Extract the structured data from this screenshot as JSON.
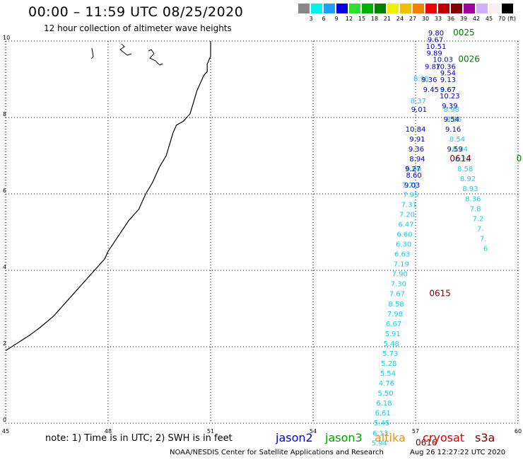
{
  "title": "00:00 – 11:59 UTC 08/25/2020",
  "subtitle": "12 hour collection of altimeter wave heights",
  "scale": {
    "unit": "(ft)",
    "colors": [
      "#888888",
      "#00f0f0",
      "#1ea0ff",
      "#0000e0",
      "#30e030",
      "#00b000",
      "#008000",
      "#f0f000",
      "#f0c000",
      "#f08000",
      "#f00000",
      "#c00000",
      "#800000",
      "#a000a0",
      "#d0b0ff",
      "#f8f0f0",
      "#000000"
    ],
    "labels": [
      "3",
      "6",
      "9",
      "12",
      "15",
      "18",
      "21",
      "24",
      "27",
      "30",
      "33",
      "36",
      "39",
      "42",
      "45",
      "70"
    ]
  },
  "chart_data": {
    "type": "scatter",
    "xlim": [
      45,
      60
    ],
    "ylim": [
      0,
      10
    ],
    "xticks": [
      "45",
      "48",
      "51",
      "54",
      "57",
      "60"
    ],
    "yticks": [
      "0",
      "2",
      "4",
      "6",
      "8",
      "10"
    ],
    "grid": true,
    "coastline": [
      [
        45.0,
        1.9
      ],
      [
        45.7,
        2.3
      ],
      [
        46.0,
        2.5
      ],
      [
        46.4,
        2.8
      ],
      [
        46.9,
        3.3
      ],
      [
        47.3,
        3.7
      ],
      [
        47.5,
        3.9
      ],
      [
        47.9,
        4.3
      ],
      [
        48.0,
        4.5
      ],
      [
        48.3,
        4.9
      ],
      [
        48.6,
        5.3
      ],
      [
        48.9,
        5.6
      ],
      [
        49.0,
        5.8
      ],
      [
        49.1,
        6.0
      ],
      [
        49.3,
        6.3
      ],
      [
        49.5,
        6.7
      ],
      [
        49.7,
        7.0
      ],
      [
        49.8,
        7.3
      ],
      [
        49.9,
        7.6
      ],
      [
        50.0,
        7.8
      ],
      [
        50.2,
        7.9
      ],
      [
        50.4,
        8.1
      ],
      [
        50.5,
        8.4
      ],
      [
        50.6,
        8.7
      ],
      [
        50.7,
        8.9
      ],
      [
        50.8,
        9.1
      ],
      [
        50.9,
        9.2
      ],
      [
        50.9,
        9.4
      ],
      [
        51.0,
        9.6
      ],
      [
        51.0,
        9.8
      ],
      [
        51.0,
        10.0
      ]
    ],
    "series": [
      {
        "color": "#1ec8e6",
        "points": [
          [
            57.17,
            8.95,
            "8.95"
          ],
          [
            57.08,
            8.37,
            "8.37"
          ],
          [
            56.94,
            6.6,
            "6.60"
          ],
          [
            56.83,
            6.17,
            "7.71"
          ],
          [
            56.86,
            5.92,
            "7.95"
          ],
          [
            56.81,
            5.66,
            "7.31"
          ],
          [
            56.75,
            5.4,
            "7.20"
          ],
          [
            56.72,
            5.14,
            "6.47"
          ],
          [
            56.68,
            4.88,
            "6.60"
          ],
          [
            56.65,
            4.62,
            "6.30"
          ],
          [
            56.61,
            4.36,
            "6.63"
          ],
          [
            56.58,
            4.1,
            "7.19"
          ],
          [
            56.54,
            3.84,
            "7.90"
          ],
          [
            56.5,
            3.58,
            "7.30"
          ],
          [
            56.46,
            3.32,
            "7.67"
          ],
          [
            56.43,
            3.06,
            "8.58"
          ],
          [
            56.4,
            2.8,
            "7.98"
          ],
          [
            56.36,
            2.54,
            "6.67"
          ],
          [
            56.33,
            2.28,
            "5.91"
          ],
          [
            56.29,
            2.02,
            "5.48"
          ],
          [
            56.26,
            1.76,
            "5.73"
          ],
          [
            56.22,
            1.5,
            "5.28"
          ],
          [
            56.19,
            1.24,
            "5.54"
          ],
          [
            56.15,
            0.98,
            "4.76"
          ],
          [
            56.12,
            0.72,
            "5.50"
          ],
          [
            56.08,
            0.46,
            "6.18"
          ],
          [
            56.04,
            0.2,
            "6.61"
          ],
          [
            56.01,
            -0.06,
            "5.45"
          ],
          [
            55.97,
            -0.32,
            "6.13"
          ],
          [
            55.94,
            -0.58,
            "5.94"
          ],
          [
            57.95,
            8.67,
            "8.67"
          ],
          [
            58.05,
            8.15,
            "8.98"
          ],
          [
            58.12,
            7.89,
            "8.86"
          ],
          [
            58.22,
            7.37,
            "8.54"
          ],
          [
            58.3,
            7.11,
            "8.34"
          ],
          [
            58.38,
            6.85,
            "8.22"
          ],
          [
            58.45,
            6.59,
            "8.58"
          ],
          [
            58.53,
            6.33,
            "8.92"
          ],
          [
            58.6,
            6.07,
            "8.93"
          ],
          [
            58.68,
            5.81,
            "8.36"
          ],
          [
            58.75,
            5.55,
            "7.8"
          ],
          [
            58.83,
            5.29,
            "7.2"
          ],
          [
            58.9,
            5.03,
            "7."
          ],
          [
            58.98,
            4.77,
            "7."
          ],
          [
            59.05,
            4.51,
            "6"
          ]
        ]
      },
      {
        "color": "#0000c8",
        "points": [
          [
            57.6,
            10.15,
            "9.80"
          ],
          [
            57.58,
            9.97,
            "9.67"
          ],
          [
            57.6,
            9.8,
            "10.51"
          ],
          [
            57.55,
            9.62,
            "9.89"
          ],
          [
            57.8,
            9.45,
            "10.03"
          ],
          [
            57.88,
            9.27,
            "10.36"
          ],
          [
            57.5,
            9.27,
            "9.87"
          ],
          [
            57.95,
            9.1,
            "9.54"
          ],
          [
            57.4,
            8.93,
            "9.36"
          ],
          [
            57.95,
            8.93,
            "9.13"
          ],
          [
            57.45,
            8.67,
            "9.45"
          ],
          [
            57.95,
            8.67,
            "9.67"
          ],
          [
            58.0,
            8.5,
            "10.23"
          ],
          [
            58.0,
            8.24,
            "9.39"
          ],
          [
            57.1,
            8.15,
            "9.01"
          ],
          [
            58.05,
            7.89,
            "9.54"
          ],
          [
            57.0,
            7.63,
            "10.84"
          ],
          [
            58.1,
            7.63,
            "9.16"
          ],
          [
            57.05,
            7.37,
            "9.91"
          ],
          [
            57.02,
            7.11,
            "9.36"
          ],
          [
            58.15,
            7.11,
            "9.59"
          ],
          [
            57.05,
            6.85,
            "8.94"
          ],
          [
            56.92,
            6.59,
            "9.27"
          ],
          [
            56.95,
            6.43,
            "8.60"
          ],
          [
            56.9,
            6.17,
            "9.03"
          ]
        ]
      },
      {
        "color": "#00b000",
        "points": []
      },
      {
        "color": "#f0a000",
        "points": []
      },
      {
        "color": "#c00000",
        "points": []
      },
      {
        "color": "#800000",
        "points": []
      }
    ],
    "time_labels": [
      {
        "text": "0025",
        "x": 58.1,
        "y": 10.15,
        "color": "#008000"
      },
      {
        "text": "0026",
        "x": 58.25,
        "y": 9.45,
        "color": "#008000"
      },
      {
        "text": "0",
        "x": 59.95,
        "y": 6.85,
        "color": "#008000"
      },
      {
        "text": "0614",
        "x": 58.0,
        "y": 6.85,
        "color": "#800000"
      },
      {
        "text": "0615",
        "x": 57.4,
        "y": 3.32,
        "color": "#800000"
      },
      {
        "text": "0616",
        "x": 57.0,
        "y": -0.58,
        "color": "#800000"
      }
    ]
  },
  "note": "note:  1) Time is in UTC;  2) SWH is in feet",
  "satellites": [
    {
      "name": "jason2",
      "color": "#0000d0"
    },
    {
      "name": "jason3",
      "color": "#00a000"
    },
    {
      "name": "altika",
      "color": "#f09000"
    },
    {
      "name": "cryosat",
      "color": "#e00000"
    },
    {
      "name": "s3a",
      "color": "#800000"
    }
  ],
  "credit": "NOAA/NESDIS Center for Satellite Applications and Research",
  "timestamp": "Aug 26 12:27:22 UTC 2020"
}
